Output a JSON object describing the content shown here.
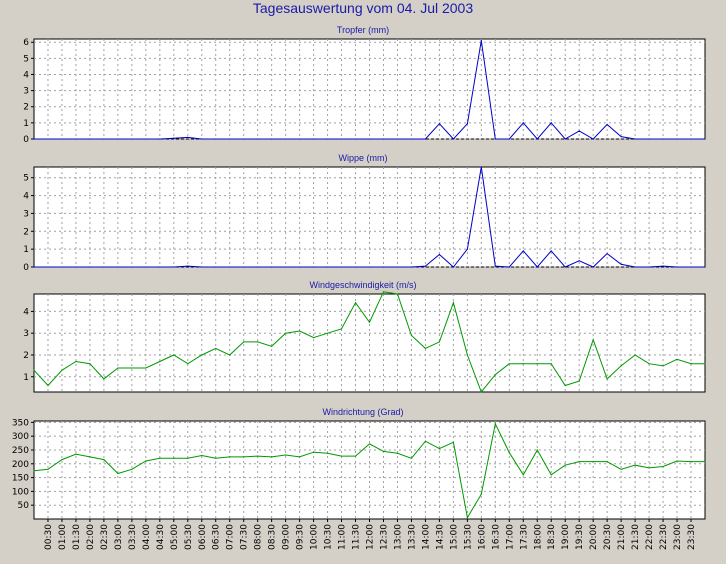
{
  "title": "Tagesauswertung vom 04. Jul 2003",
  "colors": {
    "title": "#1a1aa6",
    "background": "#d4d0c8",
    "plot_bg": "#ffffff",
    "grid": "#a0a0a0",
    "blue_series": "#0000cc",
    "green_series": "#009900"
  },
  "chart_data": [
    {
      "type": "line",
      "title": "Tropfer (mm)",
      "color": "#0000cc",
      "ylim": [
        0,
        6.2
      ],
      "yticks": [
        0,
        1,
        2,
        3,
        4,
        5,
        6
      ],
      "x": [
        0,
        1,
        2,
        3,
        4,
        5,
        6,
        7,
        8,
        9,
        10,
        11,
        12,
        13,
        14,
        15,
        16,
        17,
        18,
        19,
        20,
        21,
        22,
        23,
        24,
        25,
        26,
        27,
        28,
        29,
        30,
        31,
        32,
        33,
        34,
        35,
        36,
        37,
        38,
        39,
        40,
        41,
        42,
        43,
        44,
        45,
        46,
        47,
        48
      ],
      "values": [
        0,
        0,
        0,
        0,
        0,
        0,
        0,
        0,
        0,
        0,
        0.05,
        0.1,
        0,
        0,
        0,
        0,
        0,
        0,
        0,
        0,
        0,
        0,
        0,
        0,
        0,
        0,
        0,
        0,
        0,
        0.95,
        0,
        0.95,
        6.1,
        0,
        0,
        1.0,
        0,
        1.0,
        0,
        0.5,
        0,
        0.9,
        0.15,
        0,
        0,
        0,
        0,
        0,
        0
      ],
      "grid": true
    },
    {
      "type": "line",
      "title": "Wippe (mm)",
      "color": "#0000cc",
      "ylim": [
        0,
        5.6
      ],
      "yticks": [
        0,
        1,
        2,
        3,
        4,
        5
      ],
      "x": [
        0,
        1,
        2,
        3,
        4,
        5,
        6,
        7,
        8,
        9,
        10,
        11,
        12,
        13,
        14,
        15,
        16,
        17,
        18,
        19,
        20,
        21,
        22,
        23,
        24,
        25,
        26,
        27,
        28,
        29,
        30,
        31,
        32,
        33,
        34,
        35,
        36,
        37,
        38,
        39,
        40,
        41,
        42,
        43,
        44,
        45,
        46,
        47,
        48
      ],
      "values": [
        0,
        0,
        0,
        0,
        0,
        0,
        0,
        0,
        0,
        0,
        0,
        0.05,
        0,
        0,
        0,
        0,
        0,
        0,
        0,
        0,
        0,
        0,
        0,
        0,
        0,
        0,
        0,
        0,
        0.05,
        0.7,
        0,
        1.0,
        5.6,
        0.05,
        0,
        0.9,
        0,
        0.9,
        0,
        0.35,
        0,
        0.75,
        0.15,
        0,
        0,
        0.05,
        0,
        0,
        0
      ],
      "grid": true
    },
    {
      "type": "line",
      "title": "Windgeschwindigkeit (m/s)",
      "color": "#009900",
      "ylim": [
        0.3,
        4.8
      ],
      "yticks": [
        1,
        2,
        3,
        4
      ],
      "x": [
        0,
        1,
        2,
        3,
        4,
        5,
        6,
        7,
        8,
        9,
        10,
        11,
        12,
        13,
        14,
        15,
        16,
        17,
        18,
        19,
        20,
        21,
        22,
        23,
        24,
        25,
        26,
        27,
        28,
        29,
        30,
        31,
        32,
        33,
        34,
        35,
        36,
        37,
        38,
        39,
        40,
        41,
        42,
        43,
        44,
        45,
        46,
        47,
        48
      ],
      "values": [
        1.3,
        0.6,
        1.3,
        1.7,
        1.6,
        0.9,
        1.4,
        1.4,
        1.4,
        1.7,
        2.0,
        1.6,
        2.0,
        2.3,
        2.0,
        2.6,
        2.6,
        2.4,
        3.0,
        3.1,
        2.8,
        3.0,
        3.2,
        4.4,
        3.5,
        4.9,
        4.8,
        2.9,
        2.3,
        2.6,
        4.4,
        2.0,
        0.3,
        1.1,
        1.6,
        1.6,
        1.6,
        1.6,
        0.6,
        0.8,
        2.7,
        0.9,
        1.5,
        2.0,
        1.6,
        1.5,
        1.8,
        1.6,
        1.6
      ],
      "grid": true
    },
    {
      "type": "line",
      "title": "Windrichtung (Grad)",
      "color": "#009900",
      "ylim": [
        0,
        355
      ],
      "yticks": [
        50,
        100,
        150,
        200,
        250,
        300,
        350
      ],
      "x": [
        0,
        1,
        2,
        3,
        4,
        5,
        6,
        7,
        8,
        9,
        10,
        11,
        12,
        13,
        14,
        15,
        16,
        17,
        18,
        19,
        20,
        21,
        22,
        23,
        24,
        25,
        26,
        27,
        28,
        29,
        30,
        31,
        32,
        33,
        34,
        35,
        36,
        37,
        38,
        39,
        40,
        41,
        42,
        43,
        44,
        45,
        46,
        47,
        48
      ],
      "values": [
        175,
        180,
        215,
        235,
        225,
        215,
        165,
        180,
        210,
        220,
        220,
        220,
        230,
        220,
        225,
        225,
        228,
        225,
        232,
        225,
        242,
        238,
        228,
        228,
        272,
        245,
        238,
        220,
        282,
        255,
        278,
        5,
        90,
        345,
        240,
        160,
        250,
        160,
        195,
        208,
        208,
        208,
        180,
        195,
        185,
        190,
        210,
        208,
        208
      ],
      "grid": true
    }
  ],
  "x_axis": {
    "tick_labels": [
      "00:30",
      "01:00",
      "01:30",
      "02:00",
      "02:30",
      "03:00",
      "03:30",
      "04:00",
      "04:30",
      "05:00",
      "05:30",
      "06:00",
      "06:30",
      "07:00",
      "07:30",
      "08:00",
      "08:30",
      "09:00",
      "09:30",
      "10:00",
      "10:30",
      "11:00",
      "11:30",
      "12:00",
      "12:30",
      "13:00",
      "13:30",
      "14:00",
      "14:30",
      "15:00",
      "15:30",
      "16:00",
      "16:30",
      "17:00",
      "17:30",
      "18:00",
      "18:30",
      "19:00",
      "19:30",
      "20:00",
      "20:30",
      "21:00",
      "21:30",
      "22:00",
      "22:30",
      "23:00",
      "23:30"
    ]
  }
}
